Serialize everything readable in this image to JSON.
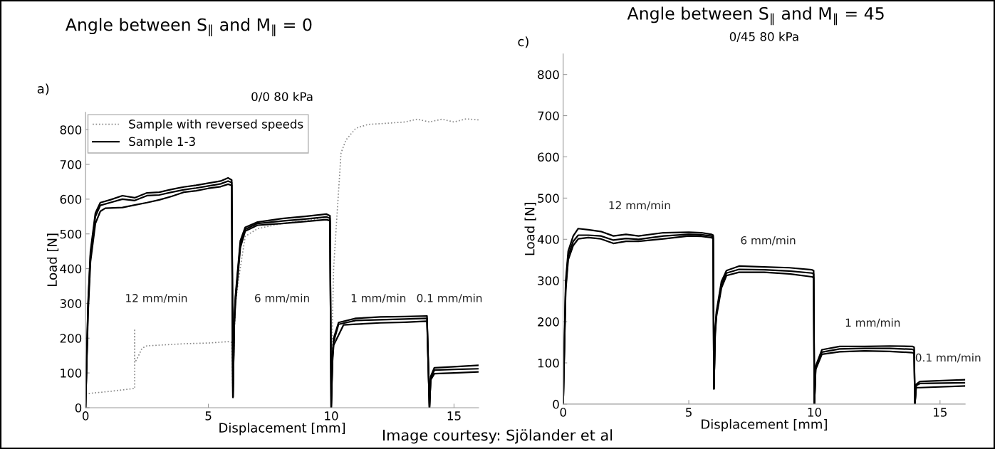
{
  "chart_data": [
    {
      "type": "line",
      "title": "Angle between S$_{‖}$ and M$_{‖}$ = 0",
      "subtitle": "0/0 80 kPa",
      "xlabel": "Displacement [mm]",
      "ylabel": "Load [N]",
      "xlim": [
        0,
        16
      ],
      "ylim": [
        0,
        850
      ],
      "xticks": [
        0,
        5,
        10,
        15
      ],
      "yticks": [
        0,
        100,
        200,
        300,
        400,
        500,
        600,
        700,
        800
      ],
      "legend": "top left",
      "annotations": [
        "a)",
        "12 mm/min",
        "6 mm/min",
        "1 mm/min",
        "0.1 mm/min"
      ],
      "series": [
        {
          "name": "Sample with reversed speeds",
          "color": "#888888",
          "line_style": "dotted",
          "x": [
            0,
            1,
            1.95,
            2,
            2,
            2,
            2.1,
            2.3,
            2.5,
            3,
            4,
            5,
            5.8,
            5.95,
            6,
            6.05,
            6.1,
            6.3,
            6.5,
            7,
            8,
            9,
            9.8,
            9.95,
            10,
            10.05,
            10.1,
            10.2,
            10.4,
            10.6,
            11,
            11.5,
            12,
            13,
            13.5,
            14,
            14.5,
            15,
            15.5,
            16
          ],
          "values": [
            40,
            47,
            55,
            55,
            227,
            130,
            141,
            171,
            178,
            180,
            184,
            186,
            190,
            188,
            30,
            200,
            300,
            403,
            493,
            515,
            530,
            538,
            549,
            548,
            30,
            250,
            403,
            515,
            733,
            770,
            804,
            815,
            817,
            822,
            830,
            822,
            830,
            822,
            831,
            828
          ]
        },
        {
          "name": "Sample 1-3",
          "color": "#000000",
          "line_style": "solid",
          "x": [
            0,
            0.1,
            0.2,
            0.4,
            0.6,
            1,
            1.5,
            2,
            2.5,
            3,
            3.5,
            4,
            4.5,
            5,
            5.5,
            5.8,
            5.95,
            6,
            6.05,
            6.1,
            6.3,
            6.5,
            7,
            8,
            9,
            9.8,
            9.95,
            10,
            10.05,
            10.1,
            10.3,
            11,
            12,
            13,
            13.9,
            14,
            14.05,
            14.2,
            15,
            16
          ],
          "values": [
            0,
            300,
            450,
            560,
            590,
            598,
            610,
            604,
            618,
            620,
            628,
            635,
            640,
            646,
            652,
            661,
            655,
            30,
            250,
            320,
            480,
            519,
            534,
            544,
            551,
            557,
            552,
            0,
            150,
            200,
            245,
            257,
            261,
            262,
            264,
            0,
            90,
            115,
            118,
            122
          ]
        },
        {
          "color": "#000000",
          "line_style": "solid",
          "x": [
            0,
            0.1,
            0.2,
            0.4,
            0.6,
            1,
            1.5,
            2,
            2.5,
            3,
            3.5,
            4,
            4.5,
            5,
            5.5,
            5.8,
            5.95,
            6,
            6.05,
            6.1,
            6.3,
            6.5,
            7,
            8,
            9,
            9.8,
            9.95,
            10,
            10.05,
            10.1,
            10.3,
            11,
            12,
            13,
            13.9,
            14,
            14.05,
            14.2,
            15,
            16
          ],
          "values": [
            0,
            290,
            440,
            550,
            582,
            590,
            600,
            596,
            610,
            612,
            620,
            627,
            632,
            638,
            644,
            652,
            648,
            30,
            240,
            310,
            470,
            513,
            530,
            537,
            543,
            549,
            545,
            0,
            140,
            190,
            240,
            251,
            253,
            255,
            257,
            0,
            85,
            108,
            110,
            112
          ]
        },
        {
          "color": "#000000",
          "line_style": "solid",
          "x": [
            0,
            0.1,
            0.2,
            0.4,
            0.6,
            0.8,
            1.5,
            2,
            2.5,
            3,
            3.5,
            4,
            4.5,
            5,
            5.5,
            5.8,
            5.95,
            6,
            6.05,
            6.1,
            6.3,
            6.5,
            7,
            8,
            9,
            9.8,
            9.95,
            10,
            10.05,
            10.1,
            10.5,
            11,
            12,
            13,
            13.9,
            14,
            14.05,
            14.2,
            15,
            16
          ],
          "values": [
            0,
            270,
            420,
            530,
            565,
            574,
            576,
            583,
            590,
            598,
            608,
            620,
            624,
            631,
            636,
            643,
            640,
            30,
            230,
            300,
            460,
            508,
            525,
            530,
            536,
            541,
            538,
            0,
            130,
            180,
            238,
            240,
            244,
            246,
            249,
            0,
            80,
            98,
            100,
            103
          ]
        }
      ]
    },
    {
      "type": "line",
      "title": "Angle between S$_{‖}$ and M$_{‖}$ = 45",
      "subtitle": "0/45 80 kPa",
      "xlabel": "Displacement [mm]",
      "ylabel": "Load [N]",
      "xlim": [
        0,
        16
      ],
      "ylim": [
        0,
        850
      ],
      "xticks": [
        0,
        5,
        10,
        15
      ],
      "yticks": [
        0,
        100,
        200,
        300,
        400,
        500,
        600,
        700,
        800
      ],
      "annotations": [
        "c)",
        "12 mm/min",
        "6 mm/min",
        "1 mm/min",
        "0.1 mm/min",
        "Image courtesy: Sjölander et al"
      ],
      "series": [
        {
          "color": "#000000",
          "line_style": "solid",
          "x": [
            0,
            0.1,
            0.2,
            0.4,
            0.6,
            1,
            1.5,
            2,
            2.5,
            3,
            4,
            5,
            5.5,
            5.9,
            5.97,
            6,
            6.05,
            6.1,
            6.3,
            6.5,
            7,
            8,
            9,
            9.9,
            9.97,
            10,
            10.05,
            10.3,
            11,
            12,
            13,
            13.9,
            13.97,
            14,
            14.05,
            14.2,
            16
          ],
          "values": [
            0,
            298,
            371,
            408,
            426,
            423,
            419,
            408,
            412,
            408,
            416,
            417,
            416,
            412,
            410,
            37,
            180,
            224,
            298,
            324,
            335,
            333,
            331,
            326,
            324,
            0,
            92,
            132,
            140,
            140,
            141,
            140,
            138,
            0,
            48,
            55,
            59
          ]
        },
        {
          "color": "#000000",
          "line_style": "solid",
          "x": [
            0,
            0.1,
            0.2,
            0.4,
            0.6,
            1,
            1.5,
            2,
            2.5,
            3,
            4,
            5,
            5.5,
            5.9,
            5.97,
            6,
            6.05,
            6.1,
            6.3,
            6.5,
            7,
            8,
            9,
            9.9,
            9.97,
            10,
            10.05,
            10.3,
            11,
            12,
            13,
            13.9,
            13.97,
            14,
            14.05,
            14.2,
            16
          ],
          "values": [
            0,
            285,
            360,
            395,
            410,
            410,
            408,
            398,
            402,
            400,
            408,
            412,
            411,
            408,
            406,
            37,
            175,
            218,
            290,
            318,
            327,
            326,
            323,
            318,
            316,
            0,
            88,
            126,
            134,
            135,
            135,
            133,
            131,
            0,
            45,
            50,
            52
          ]
        },
        {
          "color": "#000000",
          "line_style": "solid",
          "x": [
            0,
            0.1,
            0.2,
            0.4,
            0.6,
            1,
            1.5,
            2,
            2.5,
            3,
            4,
            5,
            5.5,
            5.9,
            5.97,
            6,
            6.05,
            6.1,
            6.3,
            6.5,
            7,
            8,
            9,
            9.9,
            9.97,
            10,
            10.05,
            10.3,
            11,
            12,
            13,
            13.9,
            13.97,
            14,
            14.05,
            14.2,
            16
          ],
          "values": [
            0,
            275,
            350,
            385,
            401,
            404,
            401,
            390,
            395,
            395,
            401,
            408,
            407,
            404,
            402,
            37,
            170,
            212,
            282,
            312,
            320,
            320,
            316,
            309,
            307,
            0,
            84,
            121,
            127,
            129,
            128,
            125,
            123,
            0,
            40,
            40,
            44
          ]
        }
      ]
    }
  ]
}
